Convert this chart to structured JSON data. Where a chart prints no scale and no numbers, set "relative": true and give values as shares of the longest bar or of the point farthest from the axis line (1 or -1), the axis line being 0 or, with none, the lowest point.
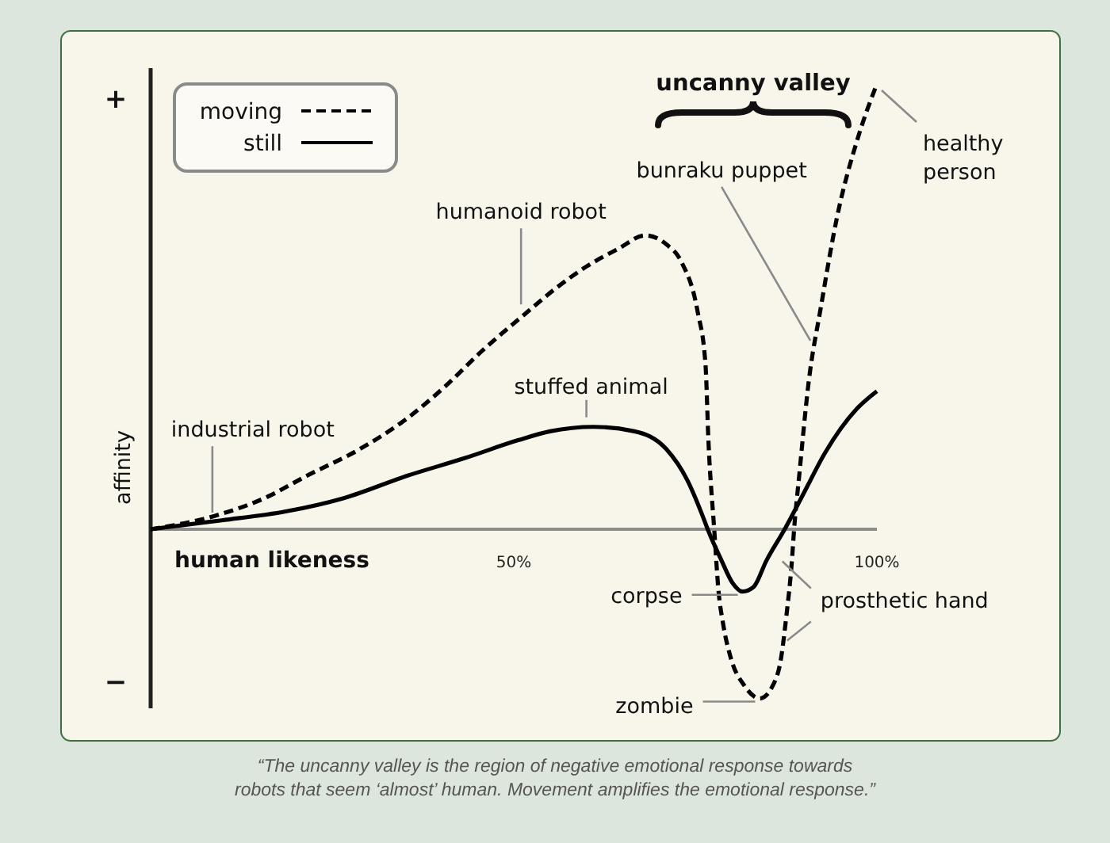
{
  "chart_data": {
    "type": "line",
    "xlabel": "human likeness",
    "ylabel": "affinity",
    "xlim": [
      0,
      100
    ],
    "xticks": [
      {
        "value": 50,
        "label": "50%"
      },
      {
        "value": 100,
        "label": "100%"
      }
    ],
    "relative": true,
    "legend": "top left",
    "series": [
      {
        "name": "moving",
        "color": "#000000",
        "line_style": "dashed",
        "x": [
          0,
          8.8,
          15.7,
          21.5,
          28.8,
          35.4,
          40.5,
          45.6,
          51.3,
          55.7,
          60.0,
          64.4,
          68.1,
          71.0,
          73.1,
          75.3,
          76.4,
          76.8,
          77.6,
          78.2,
          78.8,
          79.9,
          81.7,
          83.9,
          85.7,
          86.8,
          87.5,
          88.3,
          88.6,
          89.3,
          90.6,
          92.3,
          94.5,
          97.4,
          100
        ],
        "values": [
          0,
          0.03,
          0.07,
          0.12,
          0.18,
          0.25,
          0.32,
          0.4,
          0.48,
          0.54,
          0.59,
          0.63,
          0.66,
          0.64,
          0.6,
          0.49,
          0.37,
          0.2,
          0,
          -0.14,
          -0.21,
          -0.29,
          -0.35,
          -0.38,
          -0.35,
          -0.29,
          -0.2,
          -0.07,
          0,
          0.12,
          0.33,
          0.5,
          0.7,
          0.88,
          1
        ]
      },
      {
        "name": "still",
        "color": "#000000",
        "line_style": "solid",
        "x": [
          0,
          9.8,
          18.6,
          26.6,
          35.3,
          43.3,
          50.6,
          55.0,
          61.0,
          66.6,
          71.0,
          73.9,
          76.0,
          76.7,
          78.6,
          80.1,
          81.5,
          83.0,
          84.8,
          87.3,
          89.9,
          92.8,
          97.2,
          100
        ],
        "values": [
          0,
          0.02,
          0.04,
          0.07,
          0.12,
          0.16,
          0.2,
          0.22,
          0.23,
          0.22,
          0.18,
          0.11,
          0.03,
          0,
          -0.07,
          -0.12,
          -0.14,
          -0.13,
          -0.07,
          0,
          0.08,
          0.17,
          0.27,
          0.31
        ]
      }
    ],
    "annotations": [
      "+",
      "−",
      {
        "text": "industrial robot",
        "x": 8.5,
        "y": 0.03
      },
      {
        "text": "humanoid robot",
        "x": 51,
        "y": 0.48
      },
      {
        "text": "stuffed animal",
        "x": 60,
        "y": 0.23
      },
      {
        "text": "bunraku puppet",
        "x": 91.5,
        "y": 0.42
      },
      "uncanny valley",
      {
        "text": "healthy person",
        "x": 100,
        "y": 1
      },
      {
        "text": "corpse",
        "x": 81.5,
        "y": -0.14
      },
      {
        "text": "prosthetic hand",
        "x": 87.2,
        "y": -0.25
      },
      {
        "text": "zombie",
        "x": 83.9,
        "y": -0.38
      },
      "“The uncanny valley is the region of negative emotional response towards robots that seem ‘almost’ human. Movement amplifies the emotional response.”"
    ]
  }
}
